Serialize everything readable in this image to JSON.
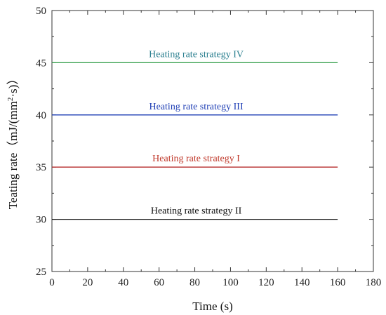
{
  "chart_data": {
    "type": "line",
    "title": "",
    "xlabel": "Time (s)",
    "ylabel_main": "Teating rate（mJ/(mm",
    "ylabel_sup": "2",
    "ylabel_tail": "·s)）",
    "xlim": [
      0,
      180
    ],
    "ylim": [
      25,
      50
    ],
    "x_major_ticks": [
      0,
      20,
      40,
      60,
      80,
      100,
      120,
      140,
      160,
      180
    ],
    "y_major_ticks": [
      25,
      30,
      35,
      40,
      45,
      50
    ],
    "x_tick_labels": [
      "0",
      "20",
      "40",
      "60",
      "80",
      "100",
      "120",
      "140",
      "160",
      "180"
    ],
    "y_tick_labels": [
      "25",
      "30",
      "35",
      "40",
      "45",
      "50"
    ],
    "grid": false,
    "legend": "none",
    "series": [
      {
        "name": "Heating rate strategy IV",
        "x": [
          0,
          160
        ],
        "y": [
          45,
          45
        ],
        "color": "#2e9b45",
        "label_color": "#2a7f8f",
        "label_x": 80,
        "label_y": 45
      },
      {
        "name": "Heating rate strategy III",
        "x": [
          0,
          160
        ],
        "y": [
          40,
          40
        ],
        "color": "#1f3fb5",
        "label_color": "#1f3fb5",
        "label_x": 80,
        "label_y": 40
      },
      {
        "name": "Heating rate strategy I",
        "x": [
          0,
          160
        ],
        "y": [
          35,
          35
        ],
        "color": "#b52a2a",
        "label_color": "#c0392b",
        "label_x": 80,
        "label_y": 35
      },
      {
        "name": "Heating rate strategy II",
        "x": [
          0,
          160
        ],
        "y": [
          30,
          30
        ],
        "color": "#111111",
        "label_color": "#111111",
        "label_x": 80,
        "label_y": 30
      }
    ]
  }
}
